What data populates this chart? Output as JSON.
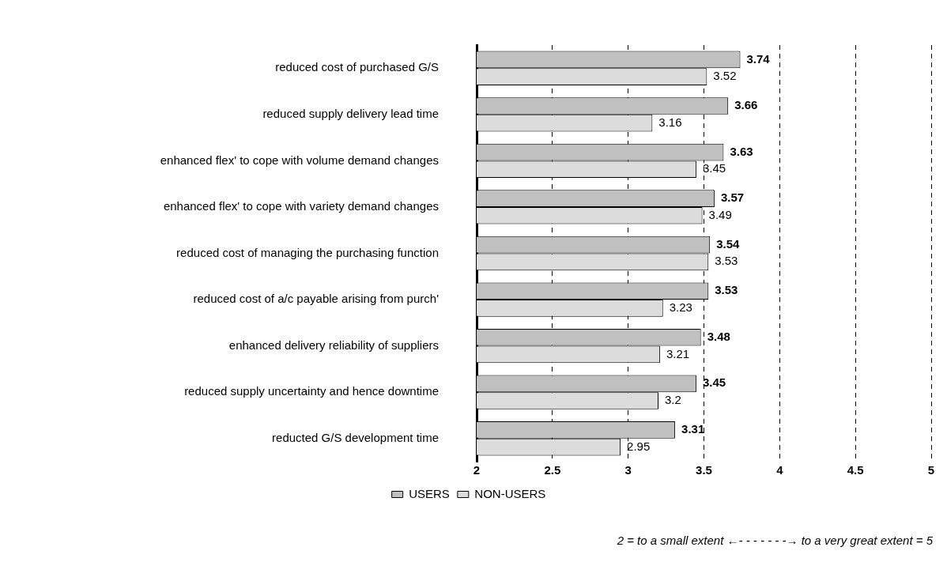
{
  "chart_data": {
    "type": "bar",
    "orientation": "horizontal",
    "categories": [
      "reduced cost of purchased G/S",
      "reduced supply delivery lead time",
      "enhanced flex' to cope with volume demand changes",
      "enhanced flex' to cope with variety demand changes",
      "reduced cost of managing the purchasing function",
      "reduced cost of a/c payable arising from purch'",
      "enhanced delivery reliability of suppliers",
      "reduced supply uncertainty and hence downtime",
      "reducted G/S development time"
    ],
    "series": [
      {
        "name": "USERS",
        "color": "#c0c0c0",
        "values": [
          3.74,
          3.66,
          3.63,
          3.57,
          3.54,
          3.53,
          3.48,
          3.45,
          3.31
        ]
      },
      {
        "name": "NON-USERS",
        "color": "#dcdcdc",
        "values": [
          3.52,
          3.16,
          3.45,
          3.49,
          3.53,
          3.23,
          3.21,
          3.2,
          2.95
        ]
      }
    ],
    "xlim": [
      2,
      5
    ],
    "xticks": [
      2,
      2.5,
      3,
      3.5,
      4,
      4.5,
      5
    ],
    "grid": "x",
    "legend": "bottom",
    "data_labels": true,
    "annotations": [
      "2 = to a small extent ←- - - - - - -→ to a very great extent = 5"
    ]
  }
}
